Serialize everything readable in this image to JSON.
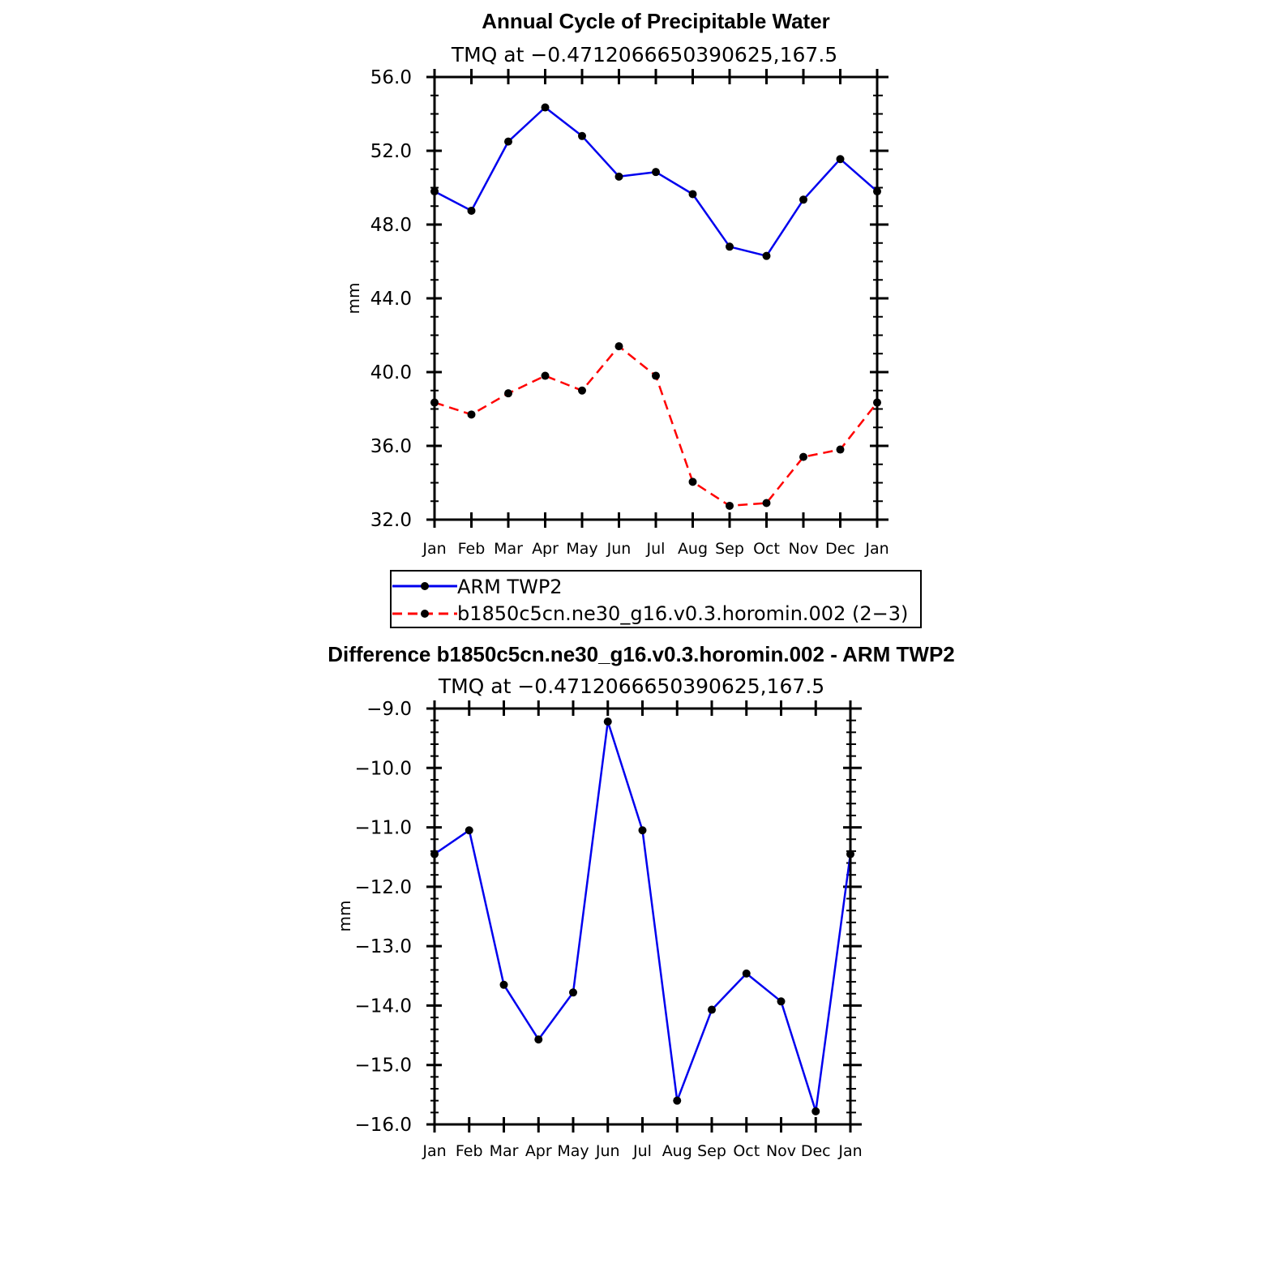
{
  "chart_data": [
    {
      "type": "line",
      "title": "Annual Cycle of Precipitable Water",
      "subtitle": "TMQ at −0.4712066650390625,167.5",
      "xlabel": "",
      "ylabel": "mm",
      "categories": [
        "Jan",
        "Feb",
        "Mar",
        "Apr",
        "May",
        "Jun",
        "Jul",
        "Aug",
        "Sep",
        "Oct",
        "Nov",
        "Dec",
        "Jan"
      ],
      "ylim": [
        32.0,
        56.0
      ],
      "yticks": [
        32.0,
        36.0,
        40.0,
        44.0,
        48.0,
        52.0,
        56.0
      ],
      "ytick_labels": [
        "32.0",
        "36.0",
        "40.0",
        "44.0",
        "48.0",
        "52.0",
        "56.0"
      ],
      "grid": false,
      "series": [
        {
          "name": "ARM TWP2",
          "color": "#0000ee",
          "style": "solid",
          "values": [
            49.8,
            48.75,
            52.5,
            54.35,
            52.8,
            50.6,
            50.85,
            49.65,
            46.8,
            46.3,
            49.35,
            51.55,
            49.8
          ]
        },
        {
          "name": "b1850c5cn.ne30_g16.v0.3.horomin.002 (2−3)",
          "color": "#ff0000",
          "style": "dashed",
          "values": [
            38.35,
            37.7,
            38.85,
            39.8,
            39.0,
            41.4,
            39.8,
            34.05,
            32.75,
            32.9,
            35.4,
            35.8,
            38.35
          ]
        }
      ],
      "legend": {
        "placement": "below",
        "entries": [
          "ARM TWP2",
          "b1850c5cn.ne30_g16.v0.3.horomin.002 (2−3)"
        ]
      }
    },
    {
      "type": "line",
      "title": "Difference b1850c5cn.ne30_g16.v0.3.horomin.002 - ARM TWP2",
      "subtitle": "TMQ at −0.4712066650390625,167.5",
      "xlabel": "",
      "ylabel": "mm",
      "categories": [
        "Jan",
        "Feb",
        "Mar",
        "Apr",
        "May",
        "Jun",
        "Jul",
        "Aug",
        "Sep",
        "Oct",
        "Nov",
        "Dec",
        "Jan"
      ],
      "ylim": [
        -16.0,
        -9.0
      ],
      "yticks": [
        -16.0,
        -15.0,
        -14.0,
        -13.0,
        -12.0,
        -11.0,
        -10.0,
        -9.0
      ],
      "ytick_labels": [
        "−16.0",
        "−15.0",
        "−14.0",
        "−13.0",
        "−12.0",
        "−11.0",
        "−10.0",
        "−9.0"
      ],
      "grid": false,
      "series": [
        {
          "name": "Difference",
          "color": "#0000ee",
          "style": "solid",
          "values": [
            -11.45,
            -11.05,
            -13.65,
            -14.57,
            -13.78,
            -9.22,
            -11.05,
            -15.6,
            -14.07,
            -13.46,
            -13.93,
            -15.78,
            -11.45
          ]
        }
      ]
    }
  ]
}
